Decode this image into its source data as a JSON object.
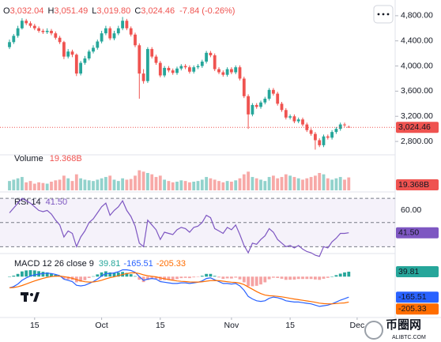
{
  "chart_data": {
    "type": "candlestick",
    "header": {
      "o_label": "O",
      "o_value": "3,032.04",
      "h_label": "H",
      "h_value": "3,051.49",
      "l_label": "L",
      "l_value": "3,019.80",
      "c_label": "C",
      "c_value": "3,024.46",
      "change": "-7.84 (-0.26%)"
    },
    "up_color": "#26a69a",
    "down_color": "#ef5350",
    "categories": [
      null,
      null,
      null,
      null,
      null,
      null,
      "15",
      null,
      null,
      null,
      null,
      null,
      null,
      null,
      null,
      null,
      null,
      null,
      null,
      null,
      null,
      null,
      "Oct",
      null,
      null,
      null,
      null,
      null,
      null,
      null,
      null,
      null,
      null,
      null,
      null,
      null,
      "15",
      null,
      null,
      null,
      null,
      null,
      null,
      null,
      null,
      null,
      null,
      null,
      null,
      null,
      null,
      null,
      null,
      "Nov",
      null,
      null,
      null,
      null,
      null,
      null,
      null,
      null,
      null,
      null,
      null,
      null,
      null,
      "15",
      null,
      null,
      null,
      null,
      null,
      null,
      null,
      null,
      null,
      null,
      null,
      null,
      null,
      null,
      null,
      "Dec"
    ],
    "ohlc": [
      [
        4300,
        4420,
        4270,
        4380
      ],
      [
        4380,
        4510,
        4350,
        4480
      ],
      [
        4480,
        4640,
        4450,
        4600
      ],
      [
        4600,
        4760,
        4580,
        4720
      ],
      [
        4720,
        4750,
        4650,
        4680
      ],
      [
        4680,
        4710,
        4610,
        4640
      ],
      [
        4640,
        4670,
        4570,
        4600
      ],
      [
        4600,
        4630,
        4530,
        4560
      ],
      [
        4560,
        4590,
        4510,
        4540
      ],
      [
        4540,
        4600,
        4510,
        4560
      ],
      [
        4560,
        4590,
        4490,
        4520
      ],
      [
        4520,
        4550,
        4420,
        4450
      ],
      [
        4450,
        4480,
        4350,
        4380
      ],
      [
        4380,
        4400,
        4110,
        4150
      ],
      [
        4150,
        4270,
        4120,
        4230
      ],
      [
        4230,
        4260,
        4140,
        4180
      ],
      [
        4180,
        4200,
        3840,
        3880
      ],
      [
        3880,
        4080,
        3850,
        4050
      ],
      [
        4050,
        4160,
        4020,
        4120
      ],
      [
        4120,
        4260,
        4090,
        4230
      ],
      [
        4230,
        4330,
        4200,
        4290
      ],
      [
        4290,
        4420,
        4260,
        4390
      ],
      [
        4390,
        4560,
        4360,
        4520
      ],
      [
        4520,
        4640,
        4490,
        4600
      ],
      [
        4600,
        4630,
        4410,
        4440
      ],
      [
        4440,
        4560,
        4410,
        4520
      ],
      [
        4520,
        4640,
        4490,
        4600
      ],
      [
        4600,
        4780,
        4570,
        4720
      ],
      [
        4720,
        4750,
        4570,
        4600
      ],
      [
        4600,
        4630,
        4470,
        4500
      ],
      [
        4500,
        4530,
        4300,
        4330
      ],
      [
        4330,
        4360,
        3480,
        3880
      ],
      [
        3880,
        3950,
        3720,
        3760
      ],
      [
        3760,
        4300,
        3730,
        4270
      ],
      [
        4270,
        4300,
        4120,
        4150
      ],
      [
        4150,
        4180,
        4020,
        4050
      ],
      [
        4050,
        4080,
        3820,
        3850
      ],
      [
        3850,
        4000,
        3820,
        3970
      ],
      [
        3970,
        4000,
        3900,
        3930
      ],
      [
        3930,
        3960,
        3860,
        3890
      ],
      [
        3890,
        3990,
        3860,
        3960
      ],
      [
        3960,
        4030,
        3930,
        4000
      ],
      [
        4000,
        4030,
        3950,
        3980
      ],
      [
        3980,
        4010,
        3880,
        3910
      ],
      [
        3910,
        4010,
        3880,
        3980
      ],
      [
        3980,
        4030,
        3950,
        4000
      ],
      [
        4000,
        4100,
        3970,
        4070
      ],
      [
        4070,
        4240,
        4040,
        4210
      ],
      [
        4210,
        4240,
        4140,
        4170
      ],
      [
        4170,
        4200,
        3920,
        3950
      ],
      [
        3950,
        3980,
        3870,
        3900
      ],
      [
        3900,
        3930,
        3830,
        3860
      ],
      [
        3860,
        3980,
        3830,
        3950
      ],
      [
        3950,
        3980,
        3870,
        3900
      ],
      [
        3900,
        4010,
        3870,
        3980
      ],
      [
        3980,
        4010,
        3770,
        3800
      ],
      [
        3800,
        3830,
        3490,
        3520
      ],
      [
        3520,
        3550,
        3000,
        3230
      ],
      [
        3230,
        3410,
        3200,
        3380
      ],
      [
        3380,
        3410,
        3320,
        3350
      ],
      [
        3350,
        3450,
        3320,
        3420
      ],
      [
        3420,
        3510,
        3390,
        3480
      ],
      [
        3480,
        3650,
        3450,
        3620
      ],
      [
        3620,
        3650,
        3530,
        3560
      ],
      [
        3560,
        3590,
        3370,
        3400
      ],
      [
        3400,
        3430,
        3270,
        3300
      ],
      [
        3300,
        3330,
        3150,
        3180
      ],
      [
        3180,
        3230,
        3150,
        3200
      ],
      [
        3200,
        3230,
        3090,
        3120
      ],
      [
        3120,
        3180,
        3090,
        3150
      ],
      [
        3150,
        3180,
        3040,
        3070
      ],
      [
        3070,
        3100,
        2950,
        2980
      ],
      [
        2980,
        3010,
        2890,
        2920
      ],
      [
        2920,
        2950,
        2670,
        2820
      ],
      [
        2820,
        2850,
        2710,
        2740
      ],
      [
        2740,
        2910,
        2710,
        2880
      ],
      [
        2880,
        2910,
        2830,
        2860
      ],
      [
        2860,
        2980,
        2830,
        2950
      ],
      [
        2950,
        3030,
        2920,
        3000
      ],
      [
        3000,
        3100,
        2970,
        3070
      ],
      [
        3070,
        3100,
        3030,
        3060
      ],
      [
        3032.04,
        3051.49,
        3019.8,
        3024.46
      ],
      null,
      null
    ],
    "ylim": [
      2600,
      5050
    ],
    "yticks": [
      {
        "value": 4800,
        "label": "4,800.00"
      },
      {
        "value": 4400,
        "label": "4,400.00"
      },
      {
        "value": 4000,
        "label": "4,000.00"
      },
      {
        "value": 3600,
        "label": "3,600.00"
      },
      {
        "value": 3200,
        "label": "3,200.00"
      },
      {
        "value": 2800,
        "label": "2,800.00"
      }
    ],
    "last_price_label": "3,024.46",
    "grid": false,
    "volume": {
      "name": "Volume",
      "value_label": "19.368B",
      "ylim": [
        0,
        52
      ],
      "values": [
        14,
        16,
        18,
        20,
        12,
        14,
        10,
        12,
        11,
        10,
        13,
        15,
        16,
        22,
        18,
        14,
        24,
        18,
        16,
        15,
        14,
        16,
        18,
        20,
        22,
        16,
        14,
        18,
        16,
        17,
        22,
        30,
        28,
        26,
        24,
        20,
        22,
        16,
        14,
        12,
        13,
        15,
        14,
        12,
        13,
        14,
        16,
        20,
        18,
        16,
        14,
        12,
        14,
        13,
        15,
        18,
        24,
        28,
        20,
        18,
        16,
        14,
        20,
        22,
        18,
        20,
        24,
        22,
        20,
        18,
        16,
        18,
        20,
        22,
        26,
        24,
        18,
        16,
        18,
        20,
        16,
        19.368,
        null,
        null
      ]
    },
    "rsi": {
      "name": "RSI 14",
      "value_label": "41.50",
      "color": "#7e57c2",
      "ylim": [
        25,
        74
      ],
      "bands": [
        30,
        50,
        70
      ],
      "yticks": [
        {
          "value": 60,
          "label": "60.00"
        }
      ],
      "values": [
        58,
        62,
        66,
        70,
        68,
        66,
        63,
        60,
        59,
        60,
        57,
        52,
        48,
        38,
        43,
        41,
        30,
        38,
        43,
        50,
        53,
        58,
        63,
        66,
        56,
        60,
        63,
        68,
        60,
        55,
        47,
        33,
        30,
        52,
        48,
        44,
        36,
        42,
        41,
        40,
        44,
        46,
        45,
        42,
        46,
        47,
        50,
        56,
        54,
        45,
        43,
        41,
        46,
        44,
        48,
        40,
        31,
        25,
        33,
        32,
        36,
        39,
        45,
        42,
        36,
        33,
        30,
        31,
        29,
        31,
        28,
        26,
        25,
        23,
        22,
        30,
        29,
        34,
        37,
        41,
        41,
        41.5,
        null,
        null
      ]
    },
    "macd": {
      "name": "MACD 12 26 close 9",
      "ylim": [
        -330,
        180
      ],
      "histogram": {
        "value_label": "39.81",
        "pos_color": "#26a69a",
        "neg_color": "#f5a3a3",
        "values": [
          0,
          8,
          22,
          42,
          50,
          52,
          50,
          44,
          39,
          34,
          25,
          14,
          3,
          -20,
          -24,
          -27,
          -46,
          -41,
          -29,
          -11,
          3,
          18,
          34,
          43,
          34,
          31,
          33,
          38,
          30,
          20,
          4,
          -25,
          -44,
          -27,
          -18,
          -18,
          -30,
          -28,
          -26,
          -25,
          -20,
          -12,
          -10,
          -12,
          -6,
          -1,
          7,
          22,
          22,
          6,
          -7,
          -18,
          -14,
          -15,
          -8,
          -22,
          -46,
          -77,
          -78,
          -74,
          -63,
          -46,
          -21,
          -9,
          -11,
          -17,
          -26,
          -25,
          -24,
          -19,
          -19,
          -19,
          -19,
          -23,
          -26,
          -17,
          -10,
          0,
          12,
          24,
          34,
          39.81,
          null,
          null
        ]
      },
      "macd_line": {
        "value_label": "-165.51",
        "color": "#2962ff",
        "values": [
          -90,
          -80,
          -60,
          -30,
          -10,
          5,
          15,
          20,
          25,
          28,
          25,
          18,
          8,
          -20,
          -30,
          -40,
          -70,
          -75,
          -70,
          -55,
          -40,
          -20,
          5,
          25,
          25,
          30,
          40,
          55,
          55,
          50,
          35,
          0,
          -30,
          -20,
          -15,
          -20,
          -40,
          -45,
          -50,
          -55,
          -55,
          -50,
          -50,
          -55,
          -50,
          -45,
          -35,
          -15,
          -10,
          -25,
          -40,
          -55,
          -55,
          -60,
          -55,
          -75,
          -110,
          -160,
          -180,
          -195,
          -200,
          -195,
          -175,
          -165,
          -170,
          -180,
          -195,
          -200,
          -205,
          -205,
          -210,
          -215,
          -220,
          -230,
          -240,
          -235,
          -230,
          -220,
          -205,
          -190,
          -178,
          -165.51,
          null,
          null
        ]
      },
      "signal_line": {
        "value_label": "-205.33",
        "color": "#ff6d00",
        "values": [
          -90,
          -88,
          -82,
          -72,
          -60,
          -47,
          -35,
          -24,
          -14,
          -6,
          0,
          4,
          5,
          0,
          -6,
          -13,
          -24,
          -34,
          -41,
          -44,
          -43,
          -38,
          -29,
          -18,
          -9,
          -1,
          7,
          17,
          25,
          30,
          31,
          25,
          14,
          7,
          3,
          -2,
          -10,
          -17,
          -24,
          -30,
          -35,
          -38,
          -40,
          -43,
          -44,
          -44,
          -42,
          -37,
          -32,
          -31,
          -33,
          -37,
          -41,
          -45,
          -47,
          -53,
          -64,
          -83,
          -102,
          -121,
          -137,
          -149,
          -154,
          -156,
          -159,
          -163,
          -169,
          -175,
          -181,
          -186,
          -191,
          -196,
          -201,
          -207,
          -214,
          -218,
          -220,
          -220,
          -217,
          -214,
          -212,
          -205.33,
          null,
          null
        ]
      }
    },
    "watermark": "币圈网",
    "watermark_sub": "ALIBTC.COM"
  }
}
